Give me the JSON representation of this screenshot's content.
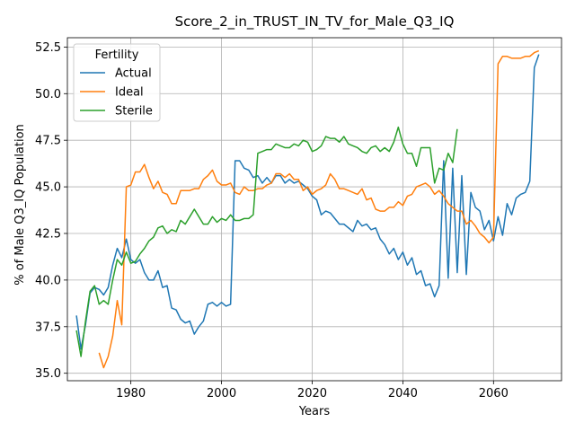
{
  "chart_data": {
    "type": "line",
    "title": "Score_2_in_TRUST_IN_TV_for_Male_Q3_IQ",
    "xlabel": "Years",
    "ylabel": "% of Male Q3_IQ Population",
    "xlim": [
      1966,
      2075
    ],
    "ylim": [
      34.6,
      53.0
    ],
    "xticks": [
      1980,
      2000,
      2020,
      2040,
      2060
    ],
    "yticks": [
      35.0,
      37.5,
      40.0,
      42.5,
      45.0,
      47.5,
      50.0,
      52.5
    ],
    "xtick_labels": [
      "1980",
      "2000",
      "2020",
      "2040",
      "2060"
    ],
    "ytick_labels": [
      "35.0",
      "37.5",
      "40.0",
      "42.5",
      "45.0",
      "47.5",
      "50.0",
      "52.5"
    ],
    "grid": true,
    "legend": {
      "title": "Fertility",
      "position": "upper left"
    },
    "series": [
      {
        "name": "Actual",
        "color": "#1f77b4",
        "points": [
          [
            1968,
            38.1
          ],
          [
            1969,
            36.3
          ],
          [
            1970,
            37.6
          ],
          [
            1971,
            39.3
          ],
          [
            1972,
            39.6
          ],
          [
            1973,
            39.5
          ],
          [
            1974,
            39.2
          ],
          [
            1975,
            39.6
          ],
          [
            1976,
            40.8
          ],
          [
            1977,
            41.7
          ],
          [
            1978,
            41.2
          ],
          [
            1979,
            42.2
          ],
          [
            1980,
            41.1
          ],
          [
            1981,
            40.9
          ],
          [
            1982,
            41.1
          ],
          [
            1983,
            40.4
          ],
          [
            1984,
            40.0
          ],
          [
            1985,
            40.0
          ],
          [
            1986,
            40.5
          ],
          [
            1987,
            39.6
          ],
          [
            1988,
            39.7
          ],
          [
            1989,
            38.5
          ],
          [
            1990,
            38.4
          ],
          [
            1991,
            37.9
          ],
          [
            1992,
            37.7
          ],
          [
            1993,
            37.8
          ],
          [
            1994,
            37.1
          ],
          [
            1995,
            37.5
          ],
          [
            1996,
            37.8
          ],
          [
            1997,
            38.7
          ],
          [
            1998,
            38.8
          ],
          [
            1999,
            38.6
          ],
          [
            2000,
            38.8
          ],
          [
            2001,
            38.6
          ],
          [
            2002,
            38.7
          ],
          [
            2003,
            46.4
          ],
          [
            2004,
            46.4
          ],
          [
            2005,
            46.0
          ],
          [
            2006,
            45.9
          ],
          [
            2007,
            45.5
          ],
          [
            2008,
            45.6
          ],
          [
            2009,
            45.2
          ],
          [
            2010,
            45.5
          ],
          [
            2011,
            45.2
          ],
          [
            2012,
            45.6
          ],
          [
            2013,
            45.6
          ],
          [
            2014,
            45.2
          ],
          [
            2015,
            45.4
          ],
          [
            2016,
            45.2
          ],
          [
            2017,
            45.3
          ],
          [
            2018,
            45.1
          ],
          [
            2019,
            44.9
          ],
          [
            2020,
            44.5
          ],
          [
            2021,
            44.3
          ],
          [
            2022,
            43.5
          ],
          [
            2023,
            43.7
          ],
          [
            2024,
            43.6
          ],
          [
            2025,
            43.3
          ],
          [
            2026,
            43.0
          ],
          [
            2027,
            43.0
          ],
          [
            2028,
            42.8
          ],
          [
            2029,
            42.6
          ],
          [
            2030,
            43.2
          ],
          [
            2031,
            42.9
          ],
          [
            2032,
            43.0
          ],
          [
            2033,
            42.7
          ],
          [
            2034,
            42.8
          ],
          [
            2035,
            42.2
          ],
          [
            2036,
            41.9
          ],
          [
            2037,
            41.4
          ],
          [
            2038,
            41.7
          ],
          [
            2039,
            41.1
          ],
          [
            2040,
            41.5
          ],
          [
            2041,
            40.8
          ],
          [
            2042,
            41.2
          ],
          [
            2043,
            40.3
          ],
          [
            2044,
            40.5
          ],
          [
            2045,
            39.7
          ],
          [
            2046,
            39.8
          ],
          [
            2047,
            39.1
          ],
          [
            2048,
            39.7
          ],
          [
            2049,
            46.4
          ],
          [
            2050,
            40.1
          ],
          [
            2051,
            46.0
          ],
          [
            2052,
            40.4
          ],
          [
            2053,
            45.6
          ],
          [
            2054,
            40.3
          ],
          [
            2055,
            44.7
          ],
          [
            2056,
            43.9
          ],
          [
            2057,
            43.7
          ],
          [
            2058,
            42.7
          ],
          [
            2059,
            43.2
          ],
          [
            2060,
            42.1
          ],
          [
            2061,
            43.4
          ],
          [
            2062,
            42.4
          ],
          [
            2063,
            44.1
          ],
          [
            2064,
            43.5
          ],
          [
            2065,
            44.4
          ],
          [
            2066,
            44.6
          ],
          [
            2067,
            44.7
          ],
          [
            2068,
            45.3
          ],
          [
            2069,
            51.4
          ],
          [
            2070,
            52.1
          ]
        ]
      },
      {
        "name": "Ideal",
        "color": "#ff7f0e",
        "segments": [
          [
            [
              1973,
              36.1
            ],
            [
              1974,
              35.3
            ],
            [
              1975,
              35.9
            ],
            [
              1976,
              37.0
            ],
            [
              1977,
              38.9
            ],
            [
              1978,
              37.6
            ],
            [
              1979,
              45.0
            ],
            [
              1980,
              45.1
            ],
            [
              1981,
              45.8
            ],
            [
              1982,
              45.8
            ],
            [
              1983,
              46.2
            ],
            [
              1984,
              45.5
            ],
            [
              1985,
              44.9
            ],
            [
              1986,
              45.3
            ],
            [
              1987,
              44.7
            ],
            [
              1988,
              44.6
            ],
            [
              1989,
              44.1
            ],
            [
              1990,
              44.1
            ],
            [
              1991,
              44.8
            ],
            [
              1992,
              44.8
            ],
            [
              1993,
              44.8
            ],
            [
              1994,
              44.9
            ],
            [
              1995,
              44.9
            ],
            [
              1996,
              45.4
            ],
            [
              1997,
              45.6
            ],
            [
              1998,
              45.9
            ],
            [
              1999,
              45.3
            ],
            [
              2000,
              45.1
            ],
            [
              2001,
              45.1
            ],
            [
              2002,
              45.2
            ],
            [
              2003,
              44.7
            ],
            [
              2004,
              44.6
            ],
            [
              2005,
              45.0
            ],
            [
              2006,
              44.8
            ],
            [
              2007,
              44.8
            ],
            [
              2008,
              44.9
            ],
            [
              2009,
              44.9
            ],
            [
              2010,
              45.1
            ],
            [
              2011,
              45.2
            ],
            [
              2012,
              45.7
            ],
            [
              2013,
              45.7
            ],
            [
              2014,
              45.5
            ],
            [
              2015,
              45.7
            ],
            [
              2016,
              45.4
            ],
            [
              2017,
              45.4
            ],
            [
              2018,
              44.8
            ],
            [
              2019,
              45.0
            ],
            [
              2020,
              44.6
            ],
            [
              2021,
              44.8
            ],
            [
              2022,
              44.9
            ],
            [
              2023,
              45.1
            ],
            [
              2024,
              45.7
            ],
            [
              2025,
              45.4
            ],
            [
              2026,
              44.9
            ],
            [
              2027,
              44.9
            ],
            [
              2028,
              44.8
            ],
            [
              2029,
              44.7
            ],
            [
              2030,
              44.6
            ],
            [
              2031,
              44.9
            ],
            [
              2032,
              44.3
            ],
            [
              2033,
              44.4
            ],
            [
              2034,
              43.8
            ],
            [
              2035,
              43.7
            ],
            [
              2036,
              43.7
            ],
            [
              2037,
              43.9
            ],
            [
              2038,
              43.9
            ],
            [
              2039,
              44.2
            ],
            [
              2040,
              44.0
            ],
            [
              2041,
              44.5
            ],
            [
              2042,
              44.6
            ],
            [
              2043,
              45.0
            ],
            [
              2044,
              45.1
            ],
            [
              2045,
              45.2
            ],
            [
              2046,
              45.0
            ],
            [
              2047,
              44.6
            ],
            [
              2048,
              44.8
            ],
            [
              2049,
              44.5
            ],
            [
              2050,
              44.1
            ],
            [
              2051,
              43.9
            ],
            [
              2052,
              43.7
            ],
            [
              2053,
              43.7
            ],
            [
              2054,
              43.0
            ],
            [
              2055,
              43.2
            ],
            [
              2056,
              42.9
            ],
            [
              2057,
              42.5
            ],
            [
              2058,
              42.3
            ],
            [
              2059,
              42.0
            ],
            [
              2060,
              42.3
            ],
            [
              2061,
              51.6
            ],
            [
              2062,
              52.0
            ],
            [
              2063,
              52.0
            ],
            [
              2064,
              51.9
            ],
            [
              2065,
              51.9
            ],
            [
              2066,
              51.9
            ],
            [
              2067,
              52.0
            ],
            [
              2068,
              52.0
            ],
            [
              2069,
              52.2
            ],
            [
              2070,
              52.3
            ]
          ]
        ]
      },
      {
        "name": "Sterile",
        "color": "#2ca02c",
        "segments": [
          [
            [
              1968,
              37.3
            ],
            [
              1969,
              35.9
            ],
            [
              1970,
              37.8
            ],
            [
              1971,
              39.4
            ],
            [
              1972,
              39.7
            ],
            [
              1973,
              38.7
            ],
            [
              1974,
              38.9
            ],
            [
              1975,
              38.7
            ],
            [
              1976,
              40.0
            ],
            [
              1977,
              41.1
            ],
            [
              1978,
              40.8
            ],
            [
              1979,
              41.5
            ],
            [
              1980,
              40.9
            ],
            [
              1981,
              41.0
            ],
            [
              1982,
              41.4
            ],
            [
              1983,
              41.7
            ],
            [
              1984,
              42.1
            ],
            [
              1985,
              42.3
            ],
            [
              1986,
              42.8
            ],
            [
              1987,
              42.9
            ],
            [
              1988,
              42.5
            ],
            [
              1989,
              42.7
            ],
            [
              1990,
              42.6
            ],
            [
              1991,
              43.2
            ],
            [
              1992,
              43.0
            ],
            [
              1993,
              43.4
            ],
            [
              1994,
              43.8
            ],
            [
              1995,
              43.4
            ],
            [
              1996,
              43.0
            ],
            [
              1997,
              43.0
            ],
            [
              1998,
              43.4
            ],
            [
              1999,
              43.1
            ],
            [
              2000,
              43.3
            ],
            [
              2001,
              43.2
            ],
            [
              2002,
              43.5
            ],
            [
              2003,
              43.2
            ],
            [
              2004,
              43.2
            ],
            [
              2005,
              43.3
            ],
            [
              2006,
              43.3
            ],
            [
              2007,
              43.5
            ],
            [
              2008,
              46.8
            ],
            [
              2009,
              46.9
            ],
            [
              2010,
              47.0
            ],
            [
              2011,
              47.0
            ],
            [
              2012,
              47.3
            ],
            [
              2013,
              47.2
            ],
            [
              2014,
              47.1
            ],
            [
              2015,
              47.1
            ],
            [
              2016,
              47.3
            ],
            [
              2017,
              47.2
            ],
            [
              2018,
              47.5
            ],
            [
              2019,
              47.4
            ],
            [
              2020,
              46.9
            ],
            [
              2021,
              47.0
            ],
            [
              2022,
              47.2
            ],
            [
              2023,
              47.7
            ],
            [
              2024,
              47.6
            ],
            [
              2025,
              47.6
            ],
            [
              2026,
              47.4
            ],
            [
              2027,
              47.7
            ],
            [
              2028,
              47.3
            ],
            [
              2029,
              47.2
            ],
            [
              2030,
              47.1
            ],
            [
              2031,
              46.9
            ],
            [
              2032,
              46.8
            ],
            [
              2033,
              47.1
            ],
            [
              2034,
              47.2
            ],
            [
              2035,
              46.9
            ],
            [
              2036,
              47.1
            ],
            [
              2037,
              46.9
            ],
            [
              2038,
              47.4
            ],
            [
              2039,
              48.2
            ],
            [
              2040,
              47.3
            ],
            [
              2041,
              46.8
            ],
            [
              2042,
              46.8
            ],
            [
              2043,
              46.1
            ],
            [
              2044,
              47.1
            ],
            [
              2045,
              47.1
            ],
            [
              2046,
              47.1
            ],
            [
              2047,
              45.2
            ],
            [
              2048,
              46.0
            ],
            [
              2049,
              45.9
            ],
            [
              2050,
              46.8
            ],
            [
              2051,
              46.3
            ],
            [
              2052,
              48.1
            ]
          ]
        ]
      }
    ]
  }
}
